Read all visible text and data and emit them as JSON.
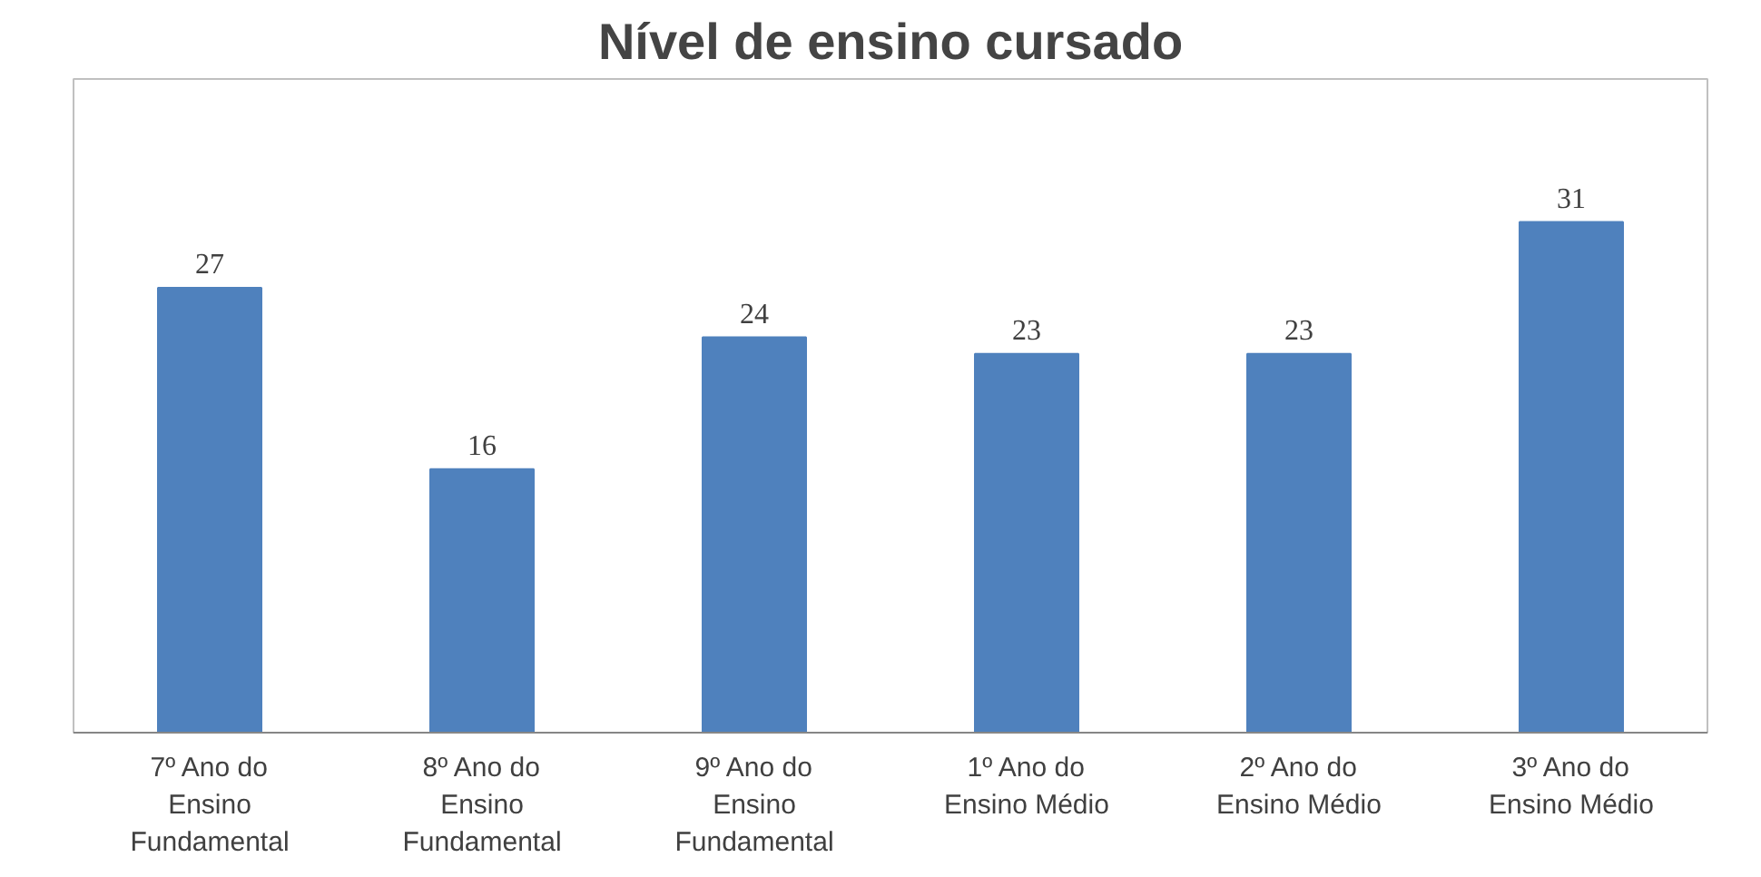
{
  "chart_data": {
    "type": "bar",
    "title": "Nível de ensino cursado",
    "categories": [
      "7º Ano do Ensino Fundamental",
      "8º Ano do Ensino Fundamental",
      "9º Ano do Ensino Fundamental",
      "1º Ano do Ensino Médio",
      "2º Ano do Ensino Médio",
      "3º Ano do Ensino Médio"
    ],
    "values": [
      27,
      16,
      24,
      23,
      23,
      31
    ],
    "color": "#4f81bd",
    "data_labels": true
  }
}
